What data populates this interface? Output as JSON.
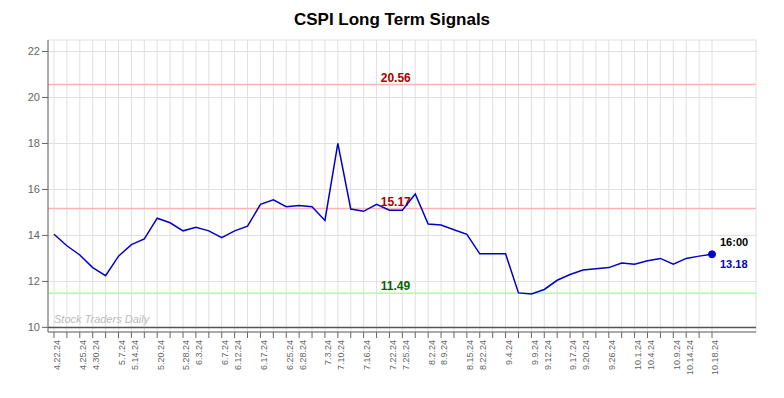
{
  "chart_data": {
    "type": "line",
    "title": "CSPI Long Term Signals",
    "categories": [
      "4.22.24",
      null,
      "4.25.24",
      "4.30.24",
      null,
      "5.7.24",
      "5.14.24",
      null,
      "5.20.24",
      null,
      "5.28.24",
      "6.3.24",
      null,
      "6.7.24",
      "6.12.24",
      null,
      "6.17.24",
      null,
      "6.25.24",
      "6.28.24",
      null,
      "7.3.24",
      "7.10.24",
      null,
      "7.16.24",
      null,
      "7.22.24",
      "7.25.24",
      null,
      "8.2.24",
      "8.9.24",
      null,
      "8.15.24",
      "8.22.24",
      null,
      "9.4.24",
      null,
      "9.9.24",
      "9.12.24",
      null,
      "9.17.24",
      "9.20.24",
      null,
      "9.26.24",
      null,
      "10.1.24",
      "10.4.24",
      null,
      "10.9.24",
      "10.14.24",
      null,
      "10.18.24"
    ],
    "values": [
      14.05,
      13.55,
      13.15,
      12.6,
      12.25,
      13.1,
      13.6,
      13.85,
      14.75,
      14.55,
      14.2,
      14.35,
      14.2,
      13.9,
      14.2,
      14.4,
      15.35,
      15.55,
      15.25,
      15.3,
      15.25,
      14.65,
      18.0,
      15.15,
      15.05,
      15.35,
      15.1,
      15.1,
      15.8,
      14.5,
      14.45,
      14.25,
      14.05,
      13.2,
      13.2,
      13.2,
      11.5,
      11.45,
      11.65,
      12.05,
      12.3,
      12.5,
      12.55,
      12.6,
      12.8,
      12.75,
      12.9,
      13.0,
      12.75,
      13.0,
      13.1,
      13.18
    ],
    "color": "#0000cc",
    "ylim": [
      9.8,
      22.5
    ],
    "yticks": [
      10,
      12,
      14,
      16,
      18,
      20,
      22
    ],
    "grid": true,
    "reference_lines": [
      {
        "value": 20.56,
        "color": "#ffb3b3",
        "label": "20.56",
        "label_color": "#aa0000"
      },
      {
        "value": 15.17,
        "color": "#ffb3b3",
        "label": "15.17",
        "label_color": "#aa0000"
      },
      {
        "value": 11.49,
        "color": "#aaffaa",
        "label": "11.49",
        "label_color": "#006600"
      },
      {
        "value": 10.0,
        "color": "#555555"
      }
    ],
    "watermark": {
      "text": "Stock Traders Daily",
      "color": "#bbbbbb"
    },
    "last_point": {
      "y": 13.18,
      "color": "#0000cc",
      "label": "13.18",
      "time": "16:00",
      "time_color": "#000000"
    }
  }
}
